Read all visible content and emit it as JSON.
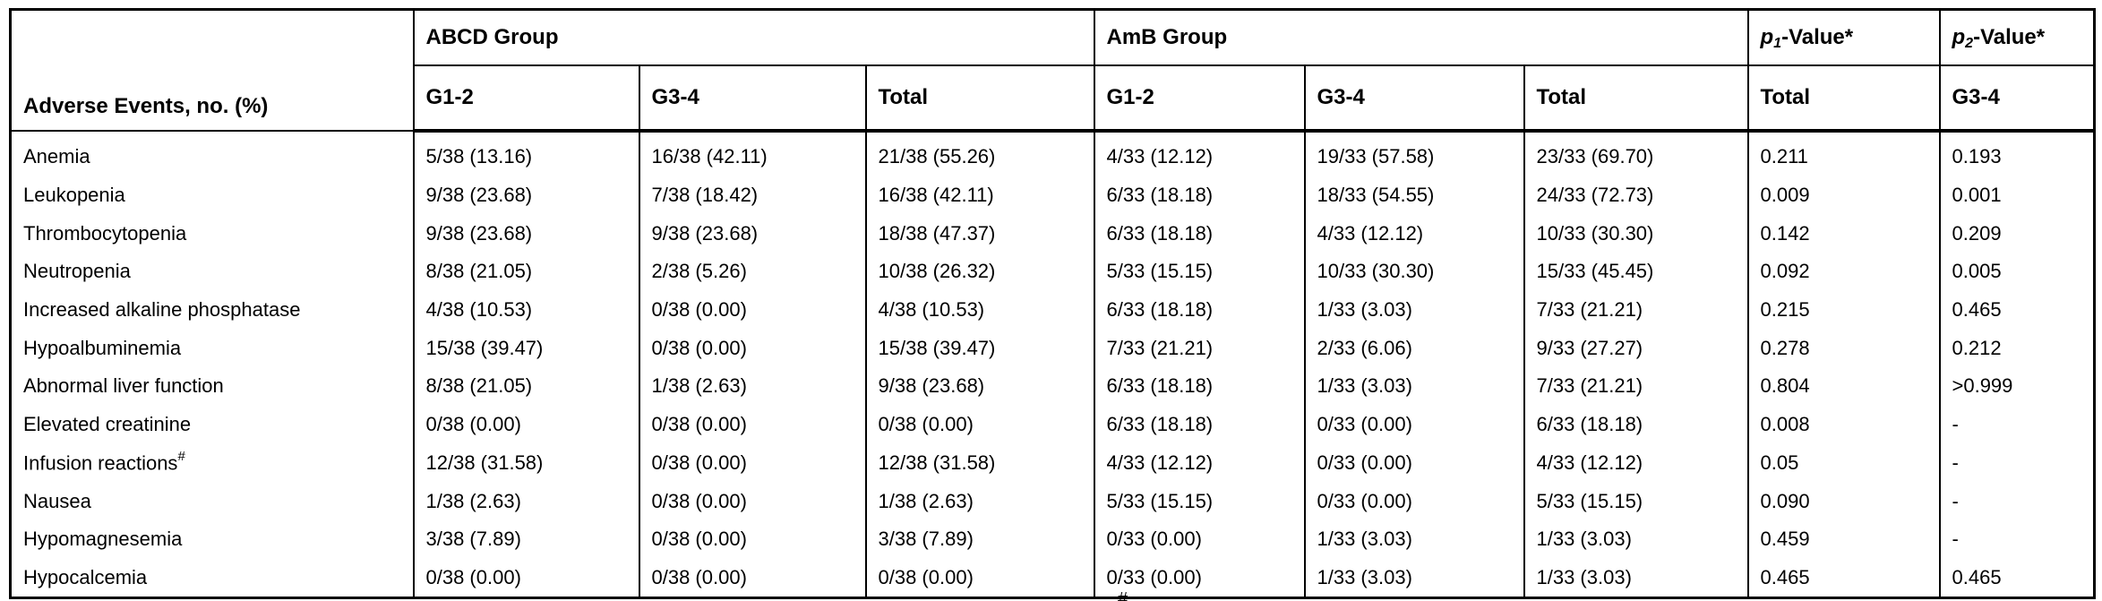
{
  "table": {
    "corner_header": "Adverse Events, no. (%)",
    "groups": [
      {
        "label": "ABCD Group",
        "cols": [
          "G1-2",
          "G3-4",
          "Total"
        ]
      },
      {
        "label": "AmB Group",
        "cols": [
          "G1-2",
          "G3-4",
          "Total"
        ]
      }
    ],
    "p_headers": [
      {
        "p": "p",
        "sub": "1",
        "rest": "-Value*",
        "subcol": "Total"
      },
      {
        "p": "p",
        "sub": "2",
        "rest": "-Value*",
        "subcol": "G3-4"
      }
    ],
    "column_keys": [
      "abcd-g12",
      "abcd-g34",
      "abcd-total",
      "amb-g12",
      "amb-g34",
      "amb-total",
      "p1-total",
      "p2-g34"
    ],
    "rows": [
      {
        "label": "Anemia",
        "label_sup": "",
        "cells": [
          "5/38 (13.16)",
          "16/38 (42.11)",
          "21/38 (55.26)",
          "4/33 (12.12)",
          "19/33 (57.58)",
          "23/33 (69.70)",
          "0.211",
          "0.193"
        ]
      },
      {
        "label": "Leukopenia",
        "label_sup": "",
        "cells": [
          "9/38 (23.68)",
          "7/38 (18.42)",
          "16/38 (42.11)",
          "6/33 (18.18)",
          "18/33 (54.55)",
          "24/33 (72.73)",
          "0.009",
          "0.001"
        ]
      },
      {
        "label": "Thrombocytopenia",
        "label_sup": "",
        "cells": [
          "9/38 (23.68)",
          "9/38 (23.68)",
          "18/38 (47.37)",
          "6/33 (18.18)",
          "4/33 (12.12)",
          "10/33 (30.30)",
          "0.142",
          "0.209"
        ]
      },
      {
        "label": "Neutropenia",
        "label_sup": "",
        "cells": [
          "8/38 (21.05)",
          "2/38 (5.26)",
          "10/38 (26.32)",
          "5/33 (15.15)",
          "10/33 (30.30)",
          "15/33 (45.45)",
          "0.092",
          "0.005"
        ]
      },
      {
        "label": "Increased alkaline phosphatase",
        "label_sup": "",
        "cells": [
          "4/38 (10.53)",
          "0/38 (0.00)",
          "4/38 (10.53)",
          "6/33 (18.18)",
          "1/33 (3.03)",
          "7/33 (21.21)",
          "0.215",
          "0.465"
        ]
      },
      {
        "label": "Hypoalbuminemia",
        "label_sup": "",
        "cells": [
          "15/38 (39.47)",
          "0/38 (0.00)",
          "15/38 (39.47)",
          "7/33 (21.21)",
          "2/33 (6.06)",
          "9/33 (27.27)",
          "0.278",
          "0.212"
        ]
      },
      {
        "label": "Abnormal liver function",
        "label_sup": "",
        "cells": [
          "8/38 (21.05)",
          "1/38 (2.63)",
          "9/38 (23.68)",
          "6/33 (18.18)",
          "1/33 (3.03)",
          "7/33 (21.21)",
          "0.804",
          ">0.999"
        ]
      },
      {
        "label": "Elevated creatinine",
        "label_sup": "",
        "cells": [
          "0/38 (0.00)",
          "0/38 (0.00)",
          "0/38 (0.00)",
          "6/33 (18.18)",
          "0/33 (0.00)",
          "6/33 (18.18)",
          "0.008",
          "-"
        ]
      },
      {
        "label": "Infusion reactions",
        "label_sup": "#",
        "cells": [
          "12/38 (31.58)",
          "0/38 (0.00)",
          "12/38 (31.58)",
          "4/33 (12.12)",
          "0/33 (0.00)",
          "4/33 (12.12)",
          "0.05",
          "-"
        ]
      },
      {
        "label": "Nausea",
        "label_sup": "",
        "cells": [
          "1/38 (2.63)",
          "0/38 (0.00)",
          "1/38 (2.63)",
          "5/33 (15.15)",
          "0/33 (0.00)",
          "5/33 (15.15)",
          "0.090",
          "-"
        ]
      },
      {
        "label": "Hypomagnesemia",
        "label_sup": "",
        "cells": [
          "3/38 (7.89)",
          "0/38 (0.00)",
          "3/38 (7.89)",
          "0/33 (0.00)",
          "1/33 (3.03)",
          "1/33 (3.03)",
          "0.459",
          "-"
        ]
      },
      {
        "label": "Hypocalcemia",
        "label_sup": "",
        "cells": [
          "0/38 (0.00)",
          "0/38 (0.00)",
          "0/38 (0.00)",
          "0/33 (0.00)",
          "1/33 (3.03)",
          "1/33 (3.03)",
          "0.465",
          "0.465"
        ]
      }
    ],
    "footnote_mark": "#"
  }
}
